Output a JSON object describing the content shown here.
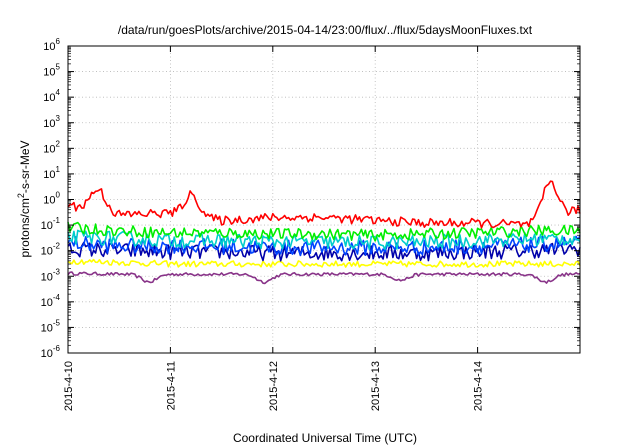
{
  "chart_data": {
    "type": "line",
    "title": "/data/run/goesPlots/archive/2015-04-14/23:00/flux/../flux/5daysMoonFluxes.txt",
    "xlabel": "Coordinated Universal Time (UTC)",
    "ylabel": "protons/cm2-s-sr-MeV",
    "ylabel_parts": {
      "prefix": "protons/cm",
      "sup": "2",
      "suffix": "-s-sr-MeV"
    },
    "yscale": "log",
    "ylim": [
      1e-06,
      1000000.0
    ],
    "xlim": [
      "2015-04-10",
      "2015-04-15"
    ],
    "grid": true,
    "x_ticks": [
      "2015-4-10",
      "2015-4-11",
      "2015-4-12",
      "2015-4-13",
      "2015-4-14"
    ],
    "y_ticks": [
      {
        "base": "10",
        "exp": "-6",
        "value": 1e-06
      },
      {
        "base": "10",
        "exp": "-5",
        "value": 1e-05
      },
      {
        "base": "10",
        "exp": "-4",
        "value": 0.0001
      },
      {
        "base": "10",
        "exp": "-3",
        "value": 0.001
      },
      {
        "base": "10",
        "exp": "-2",
        "value": 0.01
      },
      {
        "base": "10",
        "exp": "-1",
        "value": 0.1
      },
      {
        "base": "10",
        "exp": "0",
        "value": 1
      },
      {
        "base": "10",
        "exp": "1",
        "value": 10
      },
      {
        "base": "10",
        "exp": "2",
        "value": 100
      },
      {
        "base": "10",
        "exp": "3",
        "value": 1000
      },
      {
        "base": "10",
        "exp": "4",
        "value": 10000
      },
      {
        "base": "10",
        "exp": "5",
        "value": 100000
      },
      {
        "base": "10",
        "exp": "6",
        "value": 1000000
      }
    ],
    "x_dates": [
      "2015-04-10",
      "2015-04-10 12:00",
      "2015-04-11",
      "2015-04-11 12:00",
      "2015-04-12",
      "2015-04-12 12:00",
      "2015-04-13",
      "2015-04-13 12:00",
      "2015-04-14",
      "2015-04-14 12:00",
      "2015-04-15"
    ],
    "series": [
      {
        "color": "#ff0000",
        "values": [
          0.6,
          0.25,
          0.3,
          0.15,
          0.2,
          0.2,
          0.15,
          0.12,
          0.12,
          0.1,
          0.4
        ],
        "spikes": [
          [
            "2015-04-10 07:00",
            2.5
          ],
          [
            "2015-04-11 05:00",
            1.5
          ],
          [
            "2015-04-14 17:00",
            5.0
          ]
        ]
      },
      {
        "color": "#00ee00",
        "values": [
          0.08,
          0.06,
          0.05,
          0.05,
          0.045,
          0.045,
          0.04,
          0.045,
          0.05,
          0.06,
          0.06
        ]
      },
      {
        "color": "#00cccc",
        "values": [
          0.035,
          0.03,
          0.025,
          0.025,
          0.022,
          0.022,
          0.02,
          0.022,
          0.025,
          0.028,
          0.03
        ]
      },
      {
        "color": "#0044ff",
        "values": [
          0.02,
          0.015,
          0.015,
          0.015,
          0.013,
          0.013,
          0.013,
          0.013,
          0.015,
          0.017,
          0.02
        ]
      },
      {
        "color": "#0000aa",
        "values": [
          0.012,
          0.01,
          0.009,
          0.009,
          0.008,
          0.008,
          0.008,
          0.008,
          0.009,
          0.01,
          0.012
        ]
      },
      {
        "color": "#ffff00",
        "values": [
          0.004,
          0.0035,
          0.003,
          0.003,
          0.003,
          0.003,
          0.003,
          0.003,
          0.003,
          0.003,
          0.003
        ]
      },
      {
        "color": "#883388",
        "values": [
          0.0013,
          0.0012,
          0.0012,
          0.0012,
          0.0012,
          0.0012,
          0.0012,
          0.0012,
          0.0012,
          0.0012,
          0.0012
        ],
        "dips": [
          [
            "2015-04-10 19:00",
            0.0006
          ],
          [
            "2015-04-11 22:00",
            0.0006
          ],
          [
            "2015-04-13 06:00",
            0.0007
          ],
          [
            "2015-04-14 16:00",
            0.0006
          ]
        ]
      }
    ]
  }
}
